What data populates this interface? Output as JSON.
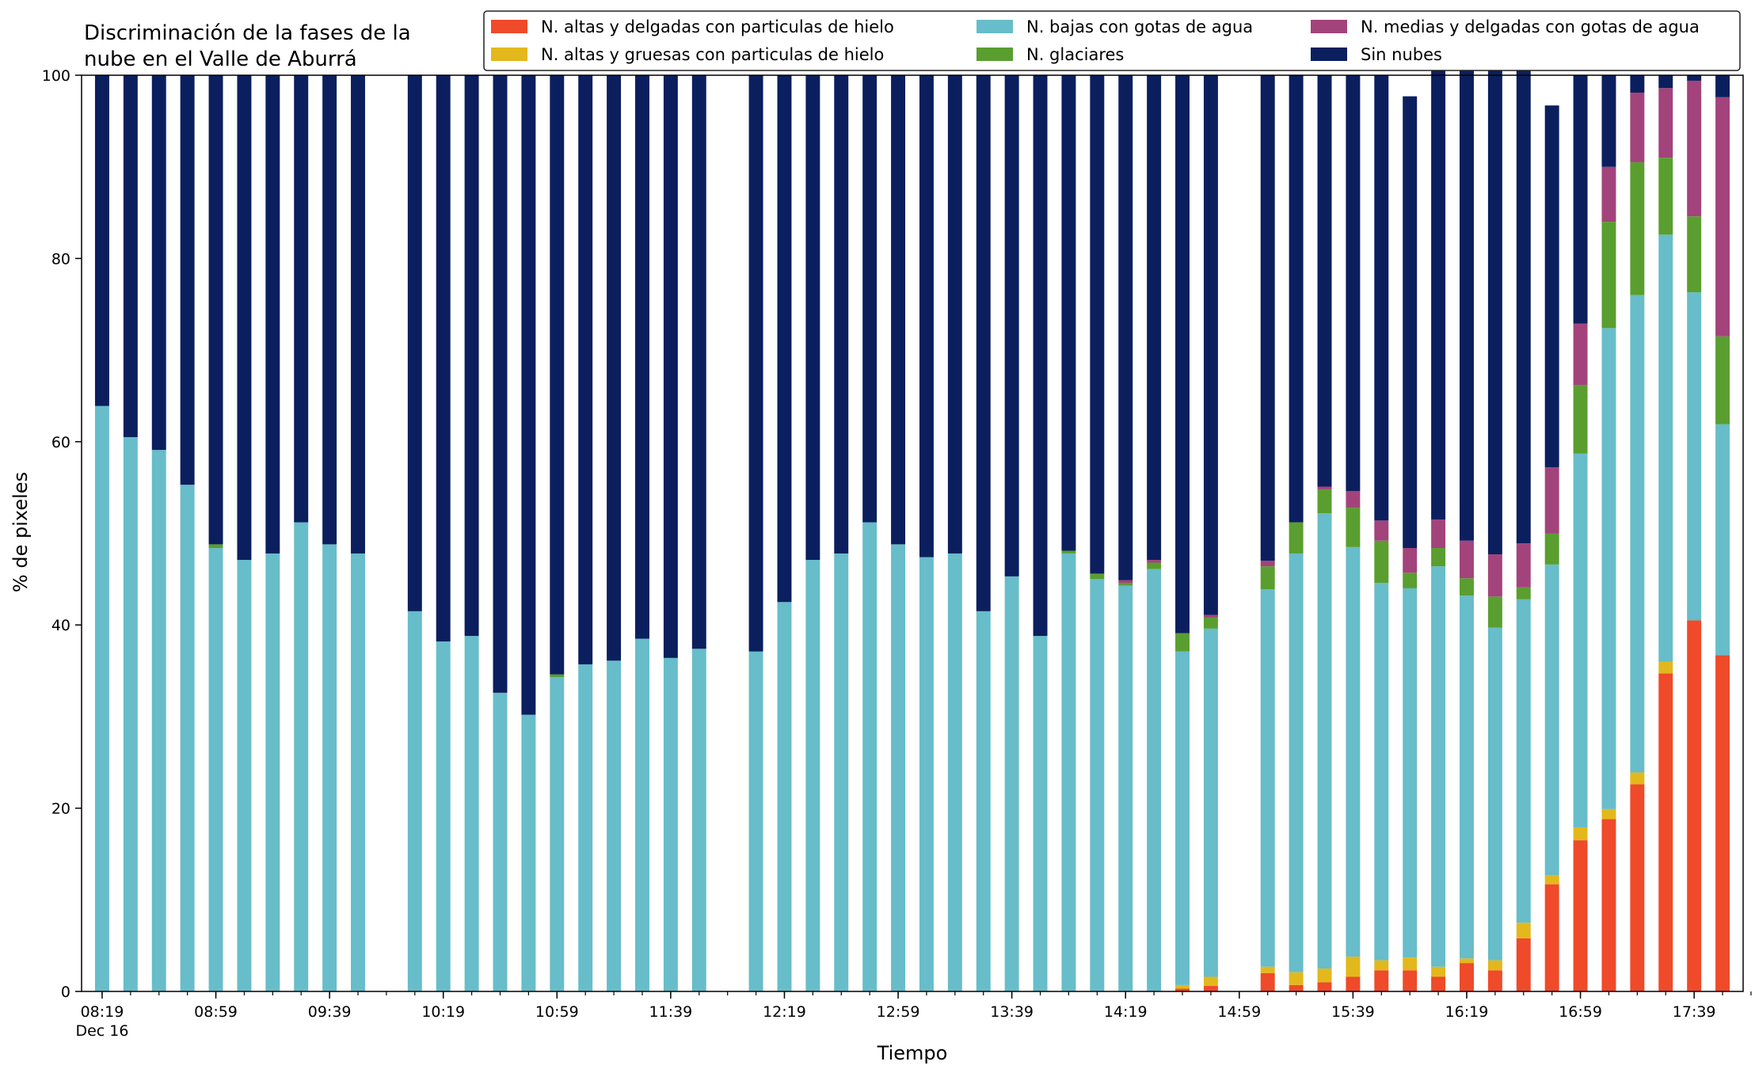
{
  "chart_data": {
    "type": "bar",
    "stacked": true,
    "title": "Discriminación de la fases de la\nnube en el Valle de Aburrá",
    "xlabel": "Tiempo",
    "ylabel": "% de pixeles",
    "ylim": [
      0,
      100
    ],
    "yticks": [
      0,
      20,
      40,
      60,
      80,
      100
    ],
    "grid": false,
    "legend_position": "top-right",
    "legend_columns": 3,
    "x_start": "08:19",
    "x_step_minutes": 10,
    "x": [
      "08:19",
      "08:29",
      "08:39",
      "08:49",
      "08:59",
      "09:09",
      "09:19",
      "09:29",
      "09:39",
      "09:49",
      "09:59",
      "10:09",
      "10:19",
      "10:29",
      "10:39",
      "10:49",
      "10:59",
      "11:09",
      "11:19",
      "11:29",
      "11:39",
      "11:49",
      "11:59",
      "12:09",
      "12:19",
      "12:29",
      "12:39",
      "12:49",
      "12:59",
      "13:09",
      "13:19",
      "13:29",
      "13:39",
      "13:49",
      "13:59",
      "14:09",
      "14:19",
      "14:29",
      "14:39",
      "14:49",
      "14:59",
      "15:09",
      "15:19",
      "15:29",
      "15:39",
      "15:49",
      "15:59",
      "16:09",
      "16:19",
      "16:29",
      "16:39",
      "16:49",
      "16:59",
      "17:09",
      "17:19",
      "17:29",
      "17:39",
      "17:49"
    ],
    "x_tick_labels": [
      {
        "label": "08:19",
        "sublabel": "Dec 16",
        "x": "08:19"
      },
      {
        "label": "08:59",
        "x": "08:59"
      },
      {
        "label": "09:39",
        "x": "09:39"
      },
      {
        "label": "10:19",
        "x": "10:19"
      },
      {
        "label": "10:59",
        "x": "10:59"
      },
      {
        "label": "11:39",
        "x": "11:39"
      },
      {
        "label": "12:19",
        "x": "12:19"
      },
      {
        "label": "12:59",
        "x": "12:59"
      },
      {
        "label": "13:39",
        "x": "13:39"
      },
      {
        "label": "14:19",
        "x": "14:19"
      },
      {
        "label": "14:59",
        "x": "14:59"
      },
      {
        "label": "15:39",
        "x": "15:39"
      },
      {
        "label": "16:19",
        "x": "16:19"
      },
      {
        "label": "16:59",
        "x": "16:59"
      },
      {
        "label": "17:39",
        "x": "17:39"
      }
    ],
    "series": [
      {
        "name": "N. altas y delgadas con particulas de hielo",
        "color": "#ef4a2a",
        "values": [
          0,
          0,
          0,
          0,
          0,
          0,
          0,
          0,
          0,
          0,
          null,
          0,
          0,
          0,
          0,
          0,
          0,
          0,
          0,
          0,
          0,
          0,
          null,
          0,
          0,
          0,
          0,
          0,
          0,
          0,
          0,
          0,
          0,
          0,
          0,
          0,
          0,
          0,
          0.3,
          0.6,
          null,
          2.0,
          0.7,
          1.0,
          1.6,
          2.3,
          2.3,
          1.6,
          3.1,
          2.3,
          5.8,
          11.7,
          16.5,
          18.8,
          22.6,
          34.7,
          40.5,
          36.7
        ]
      },
      {
        "name": "N. altas y gruesas con particulas de hielo",
        "color": "#e3b81c",
        "values": [
          0,
          0,
          0,
          0,
          0,
          0,
          0,
          0,
          0,
          0,
          null,
          0,
          0,
          0,
          0,
          0,
          0,
          0,
          0,
          0,
          0,
          0,
          null,
          0,
          0,
          0,
          0,
          0,
          0,
          0,
          0,
          0,
          0,
          0,
          0,
          0,
          0,
          0,
          0.4,
          1.0,
          null,
          0.7,
          1.4,
          1.5,
          2.2,
          1.1,
          1.4,
          1.1,
          0.5,
          1.1,
          1.7,
          1.0,
          1.4,
          1.1,
          1.3,
          1.3,
          0,
          0
        ]
      },
      {
        "name": "N. bajas con gotas de agua",
        "color": "#67bdc9",
        "values": [
          63.9,
          60.5,
          59.1,
          55.3,
          48.4,
          47.1,
          47.8,
          51.2,
          48.8,
          47.8,
          null,
          41.5,
          38.2,
          38.8,
          32.6,
          30.2,
          34.3,
          35.7,
          36.1,
          38.5,
          36.4,
          37.4,
          null,
          37.1,
          42.5,
          47.1,
          47.8,
          51.2,
          48.8,
          47.4,
          47.8,
          41.5,
          45.3,
          38.8,
          47.8,
          45.0,
          44.3,
          46.1,
          36.4,
          38.0,
          null,
          41.2,
          45.7,
          49.7,
          44.7,
          41.2,
          40.3,
          43.7,
          39.6,
          36.3,
          35.3,
          33.9,
          40.8,
          52.5,
          52.1,
          46.6,
          35.8,
          25.2
        ]
      },
      {
        "name": "N. glaciares",
        "color": "#5a9e2f",
        "values": [
          0,
          0,
          0,
          0,
          0.4,
          0,
          0,
          0,
          0,
          0,
          null,
          0,
          0,
          0,
          0,
          0,
          0.3,
          0,
          0,
          0,
          0,
          0,
          null,
          0,
          0,
          0,
          0,
          0,
          0,
          0,
          0,
          0,
          0,
          0,
          0.3,
          0.6,
          0.3,
          0.7,
          2.0,
          1.2,
          null,
          2.5,
          3.4,
          2.6,
          4.3,
          4.6,
          1.7,
          2.0,
          1.9,
          3.4,
          1.3,
          3.4,
          7.5,
          11.6,
          14.5,
          8.4,
          8.3,
          9.6
        ]
      },
      {
        "name": "N. medias y delgadas con gotas de agua",
        "color": "#a3437b",
        "values": [
          0,
          0,
          0,
          0,
          0,
          0,
          0,
          0,
          0,
          0,
          null,
          0,
          0,
          0,
          0,
          0,
          0,
          0,
          0,
          0,
          0,
          0,
          null,
          0,
          0,
          0,
          0,
          0,
          0,
          0,
          0,
          0,
          0,
          0,
          0,
          0,
          0.3,
          0.3,
          0,
          0.3,
          null,
          0.6,
          0,
          0.3,
          1.8,
          2.2,
          2.7,
          3.1,
          4.1,
          4.6,
          4.8,
          7.2,
          6.7,
          6.0,
          7.6,
          7.6,
          14.8,
          26.1
        ]
      },
      {
        "name": "Sin nubes",
        "color": "#0b1f5e",
        "values": [
          36.1,
          39.5,
          40.9,
          44.7,
          51.2,
          52.9,
          52.2,
          48.8,
          51.2,
          52.2,
          null,
          58.5,
          61.8,
          61.2,
          67.4,
          69.8,
          65.4,
          64.3,
          63.9,
          61.5,
          63.6,
          62.6,
          null,
          62.9,
          57.5,
          52.9,
          52.2,
          48.8,
          51.2,
          52.6,
          52.2,
          58.5,
          54.7,
          61.2,
          51.9,
          54.4,
          55.1,
          52.9,
          60.9,
          58.9,
          null,
          53.0,
          48.8,
          44.9,
          45.4,
          48.6,
          49.3,
          51.5,
          53.9,
          53.3,
          52.2,
          39.5,
          27.1,
          10.0,
          1.9,
          1.4,
          0.6,
          2.4
        ]
      }
    ]
  }
}
